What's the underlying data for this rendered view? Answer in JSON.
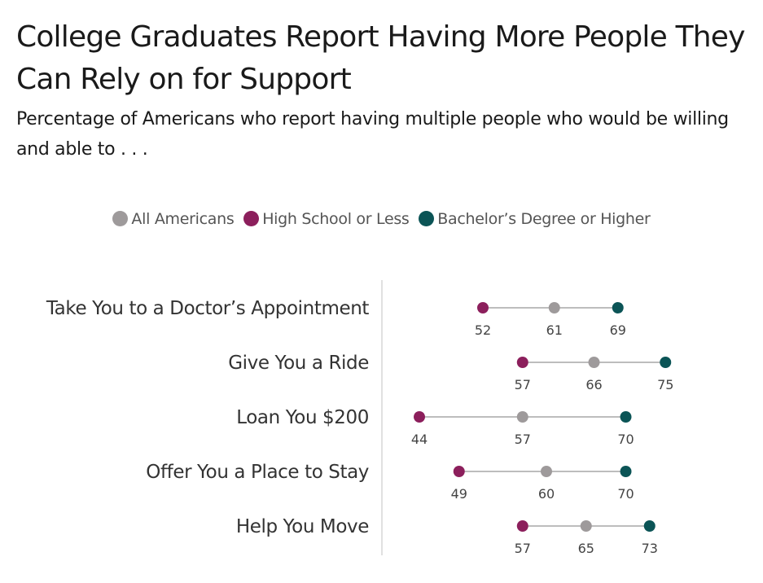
{
  "chart_data": {
    "type": "dot-range",
    "title": "College Graduates Report Having More People They Can Rely on for Support",
    "subtitle": [
      "Percentage of Americans who report having multiple people who would be willing",
      "and able to . . ."
    ],
    "series": [
      {
        "name": "All Americans",
        "color": "#9e9a9b",
        "values": [
          61,
          66,
          57,
          60,
          65
        ]
      },
      {
        "name": "High School or Less",
        "color": "#8c1f5c",
        "values": [
          52,
          57,
          44,
          49,
          57
        ]
      },
      {
        "name": "Bachelor’s Degree or Higher",
        "color": "#0b5456",
        "values": [
          69,
          75,
          70,
          70,
          73
        ]
      }
    ],
    "categories": [
      "Take You to a Doctor’s Appointment",
      "Give You a Ride",
      "Loan You $200",
      "Offer You a Place to Stay",
      "Help You Move"
    ],
    "legend": "top-center",
    "grid": false
  }
}
